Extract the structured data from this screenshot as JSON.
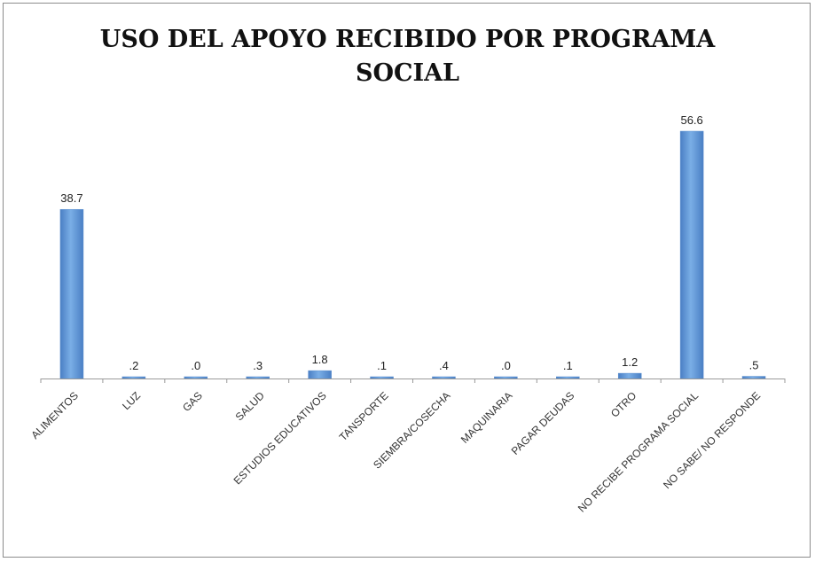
{
  "chart_data": {
    "type": "bar",
    "title_line1": "USO DEL APOYO RECIBIDO POR PROGRAMA",
    "title_line2": "SOCIAL",
    "categories": [
      "ALIMENTOS",
      "LUZ",
      "GAS",
      "SALUD",
      "ESTUDIOS EDUCATIVOS",
      "TANSPORTE",
      "SIEMBRA/COSECHA",
      "MAQUINARIA",
      "PAGAR DEUDAS",
      "OTRO",
      "NO RECIBE PROGRAMA SOCIAL",
      "NO SABE/ NO RESPONDE"
    ],
    "values": [
      38.7,
      0.2,
      0.0,
      0.3,
      1.8,
      0.1,
      0.4,
      0.0,
      0.1,
      1.2,
      56.6,
      0.5
    ],
    "data_labels": [
      "38.7",
      ".2",
      ".0",
      ".3",
      "1.8",
      ".1",
      ".4",
      ".0",
      ".1",
      "1.2",
      "56.6",
      ".5"
    ],
    "ylim": [
      0,
      60
    ],
    "grid": false,
    "legend": "none",
    "bar_color": "#5b8fcf"
  }
}
